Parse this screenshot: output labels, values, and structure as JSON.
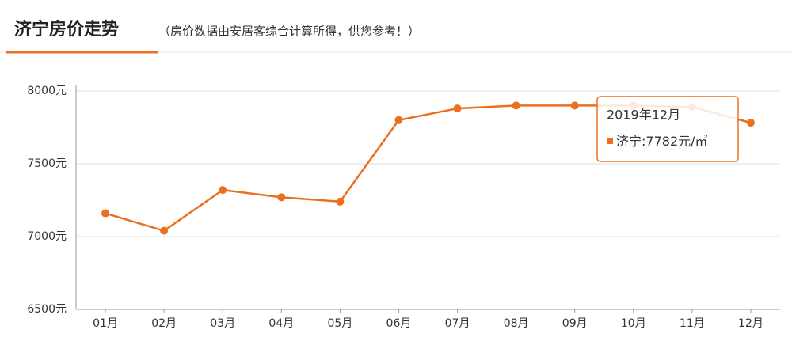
{
  "header": {
    "title": "济宁房价走势",
    "subtitle": "（房价数据由安居客综合计算所得，供您参考！）"
  },
  "chart_data": {
    "type": "line",
    "categories": [
      "01月",
      "02月",
      "03月",
      "04月",
      "05月",
      "06月",
      "07月",
      "08月",
      "09月",
      "10月",
      "11月",
      "12月"
    ],
    "series": [
      {
        "name": "济宁",
        "color": "#e8701e",
        "values": [
          7160,
          7040,
          7320,
          7270,
          7240,
          7800,
          7880,
          7900,
          7900,
          7900,
          7890,
          7782
        ]
      }
    ],
    "ylim": [
      6500,
      8000
    ],
    "yticks": [
      {
        "value": 6500,
        "label": "6500元"
      },
      {
        "value": 7000,
        "label": "7000元"
      },
      {
        "value": 7500,
        "label": "7500元"
      },
      {
        "value": 8000,
        "label": "8000元"
      }
    ],
    "grid": true,
    "tooltip": {
      "title": "2019年12月",
      "separator": ":",
      "value_label": "7782元/㎡"
    }
  }
}
